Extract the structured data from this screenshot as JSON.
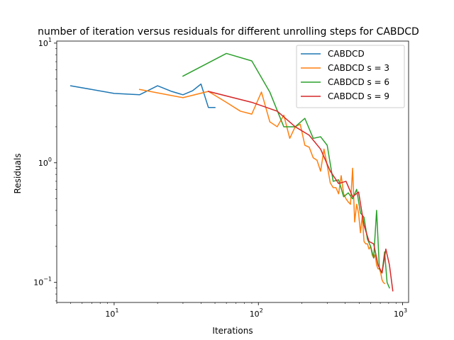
{
  "chart_data": {
    "type": "line",
    "title": "number of iteration versus residuals for different unrolling steps for CABDCD",
    "xlabel": "Iterations",
    "ylabel": "Residuals",
    "xscale": "log",
    "yscale": "log",
    "xlim": [
      4,
      1100
    ],
    "ylim": [
      0.068,
      10.4
    ],
    "x_ticks": [
      {
        "value": 10,
        "base": "10",
        "exp": "1"
      },
      {
        "value": 100,
        "base": "10",
        "exp": "2"
      },
      {
        "value": 1000,
        "base": "10",
        "exp": "3"
      }
    ],
    "y_ticks": [
      {
        "value": 0.1,
        "base": "10",
        "exp": "−1"
      },
      {
        "value": 1,
        "base": "10",
        "exp": "0"
      },
      {
        "value": 10,
        "base": "10",
        "exp": "1"
      }
    ],
    "grid": false,
    "legend_position": "top-right",
    "series": [
      {
        "name": "CABDCD",
        "color": "#1f77b4",
        "x": [
          5,
          10,
          15,
          20,
          25,
          30,
          35,
          40,
          45,
          50
        ],
        "y": [
          4.4,
          3.8,
          3.7,
          4.4,
          3.95,
          3.7,
          4.0,
          4.55,
          2.9,
          2.9
        ]
      },
      {
        "name": "CABDCD s = 3",
        "color": "#ff7f0e",
        "x": [
          15,
          30,
          45,
          60,
          75,
          90,
          105,
          120,
          135,
          150,
          165,
          180,
          195,
          210,
          225,
          240,
          255,
          270,
          285,
          300,
          315,
          330,
          345,
          360,
          375,
          390,
          405,
          420,
          435,
          450,
          465,
          480,
          495,
          510,
          525,
          540,
          555,
          570,
          585,
          600,
          615,
          630,
          645,
          660,
          675,
          690,
          705,
          720,
          735,
          750
        ],
        "y": [
          4.1,
          3.5,
          3.95,
          3.2,
          2.7,
          2.55,
          3.9,
          2.2,
          2.0,
          2.5,
          1.6,
          2.0,
          2.1,
          1.4,
          1.35,
          1.1,
          1.05,
          0.85,
          1.3,
          0.95,
          0.68,
          0.62,
          0.62,
          0.55,
          0.78,
          0.55,
          0.5,
          0.47,
          0.45,
          0.9,
          0.32,
          0.45,
          0.38,
          0.26,
          0.36,
          0.22,
          0.21,
          0.21,
          0.19,
          0.2,
          0.17,
          0.16,
          0.17,
          0.14,
          0.13,
          0.13,
          0.12,
          0.105,
          0.1,
          0.098
        ]
      },
      {
        "name": "CABDCD s = 6",
        "color": "#2ca02c",
        "x": [
          30,
          60,
          90,
          120,
          150,
          180,
          210,
          240,
          270,
          300,
          330,
          360,
          390,
          420,
          450,
          480,
          510,
          540,
          570,
          600,
          630,
          660,
          690,
          720,
          750,
          780,
          810
        ],
        "y": [
          5.3,
          8.2,
          7.1,
          3.9,
          2.0,
          2.0,
          2.35,
          1.6,
          1.65,
          1.4,
          0.7,
          0.72,
          0.52,
          0.56,
          0.5,
          0.6,
          0.38,
          0.35,
          0.23,
          0.2,
          0.16,
          0.4,
          0.13,
          0.12,
          0.18,
          0.1,
          0.09
        ]
      },
      {
        "name": "CABDCD s = 9",
        "color": "#d62728",
        "x": [
          45,
          90,
          135,
          180,
          225,
          270,
          315,
          360,
          405,
          450,
          495,
          540,
          585,
          630,
          675,
          720,
          765,
          810,
          855
        ],
        "y": [
          3.95,
          3.2,
          2.7,
          2.0,
          1.7,
          1.3,
          0.85,
          0.67,
          0.7,
          0.52,
          0.57,
          0.3,
          0.22,
          0.21,
          0.14,
          0.12,
          0.19,
          0.14,
          0.085
        ]
      }
    ]
  }
}
